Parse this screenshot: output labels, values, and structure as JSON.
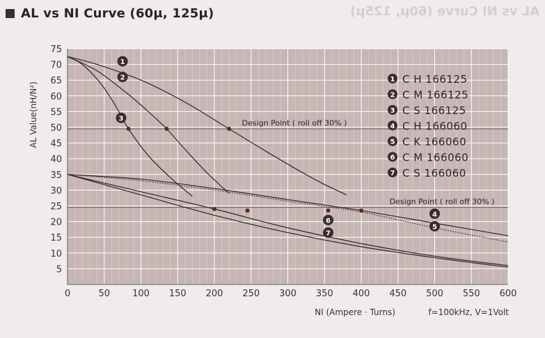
{
  "header": {
    "title": "AL vs NI Curve (60μ, 125μ)",
    "ghost_title": "AL vs NI Curve (60μ, 125μ)"
  },
  "chart_data": {
    "type": "line",
    "title": "AL vs NI Curve (60μ, 125μ)",
    "xlabel": "NI (Ampere · Turns)",
    "ylabel": "AL Value(nH/N²)",
    "condition_note": "f=100kHz, V=1Volt",
    "xlim": [
      0,
      600
    ],
    "ylim": [
      0,
      75
    ],
    "x_ticks": [
      0,
      50,
      100,
      150,
      200,
      250,
      300,
      350,
      400,
      450,
      500,
      550,
      600
    ],
    "y_ticks": [
      5,
      10,
      15,
      20,
      25,
      30,
      35,
      40,
      45,
      50,
      55,
      60,
      65,
      70,
      75
    ],
    "grid": true,
    "legend_position": "top-right",
    "series": [
      {
        "id": "1",
        "name": "C H 166125",
        "style": "solid",
        "x": [
          0,
          40,
          100,
          160,
          220,
          280,
          340,
          380
        ],
        "y": [
          72.5,
          70,
          65,
          58,
          49.5,
          41,
          33,
          28.5
        ]
      },
      {
        "id": "2",
        "name": "C M 166125",
        "style": "solid",
        "x": [
          0,
          40,
          80,
          110,
          135,
          160,
          190,
          220
        ],
        "y": [
          72.5,
          68,
          61,
          55,
          49.5,
          43,
          35.5,
          29
        ]
      },
      {
        "id": "3",
        "name": "C S 166125",
        "style": "solid",
        "x": [
          0,
          20,
          45,
          65,
          83,
          110,
          140,
          170
        ],
        "y": [
          72.5,
          70,
          64,
          57,
          49.5,
          41,
          34,
          28
        ]
      },
      {
        "id": "4",
        "name": "C H 166060",
        "style": "solid",
        "x": [
          0,
          100,
          200,
          300,
          400,
          500,
          600
        ],
        "y": [
          35,
          33.5,
          30.5,
          27,
          23.5,
          19.5,
          15.5
        ]
      },
      {
        "id": "5",
        "name": "C K 166060",
        "style": "dotted",
        "x": [
          0,
          100,
          200,
          300,
          400,
          500,
          600
        ],
        "y": [
          35,
          33,
          30,
          26.5,
          23,
          18,
          13.5
        ]
      },
      {
        "id": "6",
        "name": "C M 166060",
        "style": "solid",
        "x": [
          0,
          100,
          200,
          300,
          400,
          500,
          600
        ],
        "y": [
          35,
          29.5,
          24,
          18,
          13,
          9,
          6
        ]
      },
      {
        "id": "7",
        "name": "C S 166060",
        "style": "solid",
        "x": [
          0,
          100,
          200,
          300,
          400,
          500,
          600
        ],
        "y": [
          35,
          28.5,
          22,
          16.5,
          12,
          8.5,
          5.5
        ]
      }
    ],
    "design_points": [
      {
        "series": "3",
        "x": 83,
        "y": 49.5
      },
      {
        "series": "2",
        "x": 135,
        "y": 49.5
      },
      {
        "series": "1",
        "x": 220,
        "y": 49.5
      },
      {
        "series": "6",
        "x": 200,
        "y": 24
      },
      {
        "series": "7",
        "x": 245,
        "y": 23.5
      },
      {
        "series": "5",
        "x": 355,
        "y": 23.5
      },
      {
        "series": "4",
        "x": 400,
        "y": 23.5
      }
    ],
    "reference_lines": [
      {
        "y": 49.5,
        "label": "Design Point ( roll off 30% )"
      },
      {
        "y": 24.5,
        "label": "Design Point ( roll off 30% )"
      }
    ],
    "series_markers": [
      {
        "id": "1",
        "x": 75,
        "y": 71
      },
      {
        "id": "2",
        "x": 75,
        "y": 66
      },
      {
        "id": "3",
        "x": 73,
        "y": 53
      },
      {
        "id": "4",
        "x": 500,
        "y": 22.5
      },
      {
        "id": "5",
        "x": 500,
        "y": 18.5
      },
      {
        "id": "6",
        "x": 355,
        "y": 20.5
      },
      {
        "id": "7",
        "x": 355,
        "y": 16.5
      }
    ]
  }
}
